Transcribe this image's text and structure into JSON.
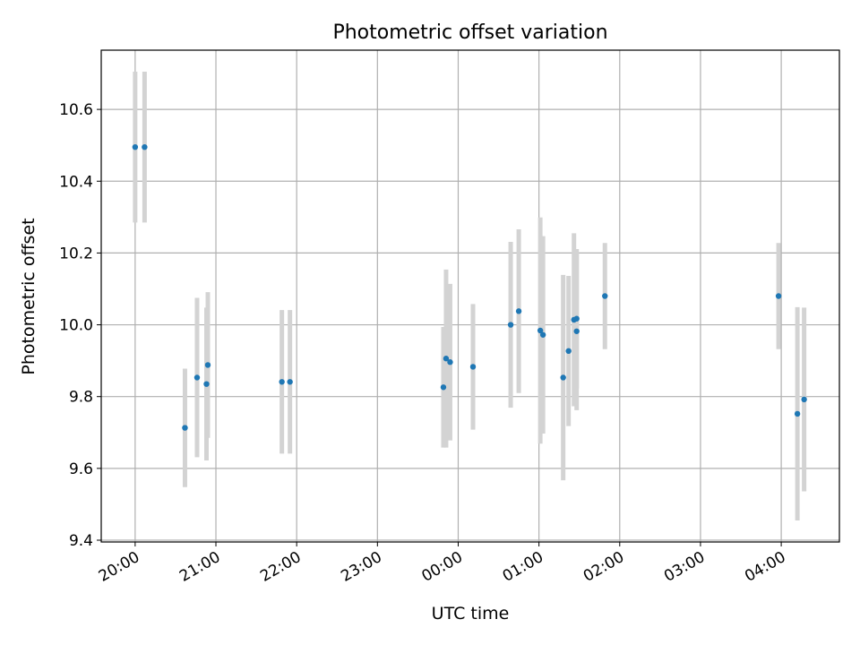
{
  "chart_data": {
    "type": "scatter",
    "title": "Photometric offset variation",
    "xlabel": "UTC time",
    "ylabel": "Photometric offset",
    "xlim_hours": [
      19.58,
      28.72
    ],
    "ylim": [
      9.395,
      10.765
    ],
    "grid": true,
    "point_color": "#1f77b4",
    "errorbar_color": "#d3d3d3",
    "x_ticks": [
      {
        "value": 20,
        "label": "20:00"
      },
      {
        "value": 21,
        "label": "21:00"
      },
      {
        "value": 22,
        "label": "22:00"
      },
      {
        "value": 23,
        "label": "23:00"
      },
      {
        "value": 24,
        "label": "00:00"
      },
      {
        "value": 25,
        "label": "01:00"
      },
      {
        "value": 26,
        "label": "02:00"
      },
      {
        "value": 27,
        "label": "03:00"
      },
      {
        "value": 28,
        "label": "04:00"
      }
    ],
    "y_ticks": [
      {
        "value": 9.4,
        "label": "9.4"
      },
      {
        "value": 9.6,
        "label": "9.6"
      },
      {
        "value": 9.8,
        "label": "9.8"
      },
      {
        "value": 10.0,
        "label": "10.0"
      },
      {
        "value": 10.2,
        "label": "10.2"
      },
      {
        "value": 10.4,
        "label": "10.4"
      },
      {
        "value": 10.6,
        "label": "10.6"
      }
    ],
    "points": [
      {
        "time": "20:00",
        "y": 10.495,
        "err": 0.21
      },
      {
        "time": "20:07",
        "y": 10.495,
        "err": 0.21
      },
      {
        "time": "20:37",
        "y": 9.713,
        "err": 0.165
      },
      {
        "time": "20:46",
        "y": 9.853,
        "err": 0.222
      },
      {
        "time": "20:53",
        "y": 9.835,
        "err": 0.213
      },
      {
        "time": "20:54",
        "y": 9.888,
        "err": 0.203
      },
      {
        "time": "21:49",
        "y": 9.841,
        "err": 0.2
      },
      {
        "time": "21:55",
        "y": 9.841,
        "err": 0.2
      },
      {
        "time": "23:49",
        "y": 9.826,
        "err": 0.168
      },
      {
        "time": "23:51",
        "y": 9.906,
        "err": 0.248
      },
      {
        "time": "23:54",
        "y": 9.896,
        "err": 0.218
      },
      {
        "time": "00:11",
        "y": 9.883,
        "err": 0.175
      },
      {
        "time": "00:39",
        "y": 10.0,
        "err": 0.231
      },
      {
        "time": "00:45",
        "y": 10.038,
        "err": 0.228
      },
      {
        "time": "01:01",
        "y": 9.984,
        "err": 0.315
      },
      {
        "time": "01:03",
        "y": 9.972,
        "err": 0.275
      },
      {
        "time": "01:18",
        "y": 9.853,
        "err": 0.286
      },
      {
        "time": "01:22",
        "y": 9.927,
        "err": 0.209
      },
      {
        "time": "01:26",
        "y": 10.014,
        "err": 0.241
      },
      {
        "time": "01:28",
        "y": 9.982,
        "err": 0.22
      },
      {
        "time": "01:28",
        "y": 10.017,
        "err": 0.194
      },
      {
        "time": "01:49",
        "y": 10.08,
        "err": 0.148
      },
      {
        "time": "03:58",
        "y": 10.08,
        "err": 0.148
      },
      {
        "time": "04:12",
        "y": 9.752,
        "err": 0.297
      },
      {
        "time": "04:17",
        "y": 9.792,
        "err": 0.256
      }
    ]
  }
}
